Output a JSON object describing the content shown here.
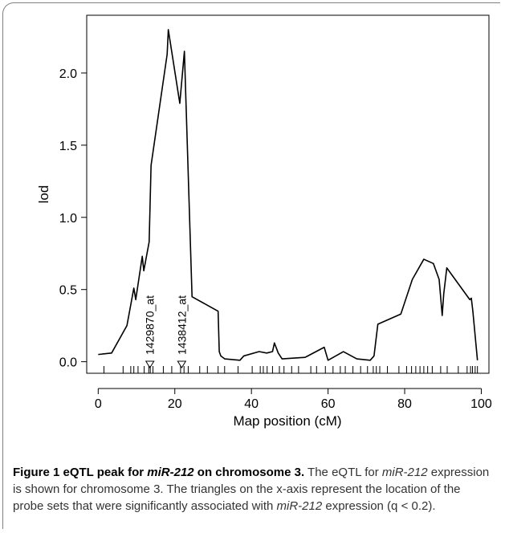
{
  "chart_data": {
    "type": "line",
    "xlabel": "Map position (cM)",
    "ylabel": "lod",
    "xlim": [
      -3,
      102
    ],
    "ylim": [
      -0.08,
      2.4
    ],
    "xticks": [
      0,
      20,
      40,
      60,
      80,
      100
    ],
    "yticks": [
      0.0,
      0.5,
      1.0,
      1.5,
      2.0
    ],
    "ytick_labels": [
      "0.0",
      "0.5",
      "1.0",
      "1.5",
      "2.0"
    ],
    "grid": false,
    "series": [
      {
        "x": [
          0,
          3.5,
          7.5,
          9.3,
          9.8,
          11.5,
          11.9,
          13.3,
          13.8,
          18,
          18.3,
          21.3,
          22.5,
          24.5,
          31.3,
          31.6,
          32,
          33,
          37,
          38,
          42,
          44,
          45.5,
          46,
          47,
          48,
          54,
          59,
          60,
          64,
          67.5,
          71,
          72,
          73,
          79,
          82,
          85,
          87.5,
          89,
          89.8,
          90.2,
          91,
          97,
          97.4,
          97.8,
          99
        ],
        "y": [
          0.05,
          0.06,
          0.25,
          0.51,
          0.43,
          0.73,
          0.63,
          0.83,
          1.36,
          2.13,
          2.3,
          1.79,
          2.15,
          0.45,
          0.35,
          0.07,
          0.04,
          0.02,
          0.01,
          0.04,
          0.07,
          0.06,
          0.07,
          0.13,
          0.06,
          0.02,
          0.03,
          0.1,
          0.01,
          0.07,
          0.02,
          0.01,
          0.04,
          0.26,
          0.33,
          0.57,
          0.71,
          0.68,
          0.57,
          0.32,
          0.47,
          0.65,
          0.43,
          0.44,
          0.35,
          0.01
        ]
      }
    ],
    "markers": [
      {
        "x": 13.5,
        "label": "1429870_at"
      },
      {
        "x": 21.8,
        "label": "1438412_at"
      }
    ],
    "rug_positions": [
      1.5,
      6.5,
      8.5,
      9.3,
      10.4,
      12,
      13.2,
      13.6,
      14.3,
      17,
      19.2,
      21.5,
      22.4,
      23.5,
      26.5,
      28.5,
      31.3,
      33,
      36.5,
      40.2,
      42.3,
      43.1,
      44.1,
      45.5,
      47.3,
      48.5,
      50.5,
      52.3,
      55.5,
      57,
      59.3,
      61.3,
      63.2,
      64.5,
      66.5,
      68.5,
      70.3,
      71.8,
      72.6,
      73.5,
      75.5,
      78.5,
      80.5,
      81.8,
      82.9,
      84,
      85,
      86,
      87.2,
      89.4,
      91.1,
      94,
      96.3,
      97.2,
      97.7,
      98.4,
      99
    ]
  },
  "caption": {
    "lead_1": "Figure 1 eQTL peak for ",
    "lead_gene": "miR-212",
    "lead_2": " on chromosome 3.",
    "text_1": " The eQTL for ",
    "gene_1": "miR-212",
    "text_2": " expression is shown for chromosome 3. The triangles on the x-axis represent the location of the probe sets that were significantly associated with ",
    "gene_2": "miR-212",
    "text_3": " expression (q < 0.2)."
  }
}
